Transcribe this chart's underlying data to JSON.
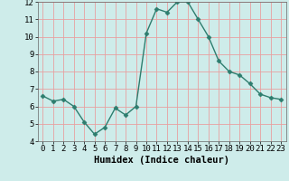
{
  "x": [
    0,
    1,
    2,
    3,
    4,
    5,
    6,
    7,
    8,
    9,
    10,
    11,
    12,
    13,
    14,
    15,
    16,
    17,
    18,
    19,
    20,
    21,
    22,
    23
  ],
  "y": [
    6.6,
    6.3,
    6.4,
    6.0,
    5.1,
    4.4,
    4.8,
    5.9,
    5.5,
    6.0,
    10.2,
    11.6,
    11.4,
    12.0,
    12.0,
    11.0,
    10.0,
    8.6,
    8.0,
    7.8,
    7.3,
    6.7,
    6.5,
    6.4
  ],
  "xlabel": "Humidex (Indice chaleur)",
  "ylim": [
    4,
    12
  ],
  "xlim_min": -0.5,
  "xlim_max": 23.5,
  "yticks": [
    4,
    5,
    6,
    7,
    8,
    9,
    10,
    11,
    12
  ],
  "xticks": [
    0,
    1,
    2,
    3,
    4,
    5,
    6,
    7,
    8,
    9,
    10,
    11,
    12,
    13,
    14,
    15,
    16,
    17,
    18,
    19,
    20,
    21,
    22,
    23
  ],
  "line_color": "#2d7d6e",
  "marker": "D",
  "marker_size": 2.5,
  "line_width": 1.0,
  "bg_color": "#ceecea",
  "grid_color": "#e8a0a0",
  "tick_fontsize": 6.5,
  "xlabel_fontsize": 7.5,
  "xlabel_fontweight": "bold"
}
